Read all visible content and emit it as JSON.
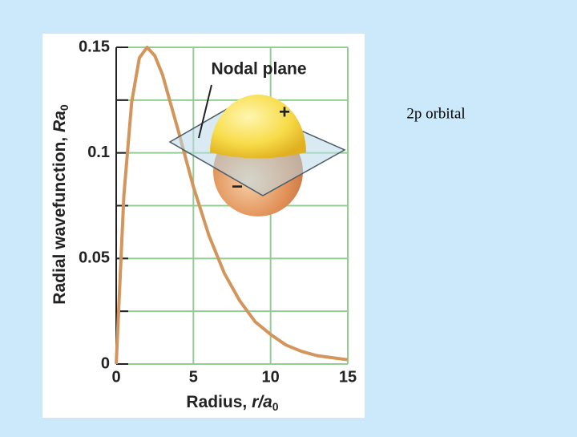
{
  "chart_data": {
    "type": "line",
    "y_label": {
      "text": "Radial wavefunction, ",
      "italic": "Ra",
      "subscript": "0"
    },
    "x_label": {
      "text": "Radius, ",
      "italic": "r/a",
      "subscript": "0"
    },
    "x": [
      0,
      0.5,
      1,
      1.5,
      2,
      2.5,
      3,
      3.5,
      4,
      5,
      6,
      7,
      8,
      9,
      10,
      11,
      12,
      13,
      14,
      15
    ],
    "series": [
      {
        "color": "#d4955c",
        "values": [
          0,
          0.08,
          0.124,
          0.145,
          0.15,
          0.146,
          0.137,
          0.124,
          0.111,
          0.084,
          0.061,
          0.043,
          0.03,
          0.02,
          0.014,
          0.009,
          0.006,
          0.004,
          0.003,
          0.002
        ]
      }
    ],
    "xlim": [
      0,
      15
    ],
    "xticks": [
      0,
      5,
      10,
      15
    ],
    "ylim": [
      0,
      0.15
    ],
    "yticks": [
      0,
      0.05,
      0.1,
      0.15
    ],
    "yticks_minor": [
      0.025,
      0.075,
      0.125
    ],
    "grid": true,
    "grid_color": "#94cc94",
    "annotations": {
      "nodal_plane": "Nodal plane",
      "plus": "+",
      "minus": "−"
    }
  },
  "slide_text": "2p orbital"
}
